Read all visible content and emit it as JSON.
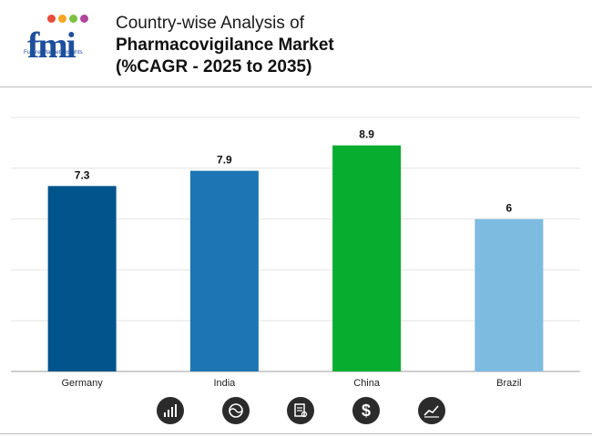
{
  "header": {
    "logo_text": "fmi",
    "logo_subtitle": "Future Market Insights",
    "title_line1": "Country-wise Analysis of",
    "title_line2": "Pharmacovigilance Market",
    "title_line3": "(%CAGR - 2025 to 2035)"
  },
  "chart_data": {
    "type": "bar",
    "title": "Country-wise Analysis of Pharmacovigilance Market (%CAGR - 2025 to 2035)",
    "categories": [
      "Germany",
      "India",
      "China",
      "Brazil"
    ],
    "values": [
      7.3,
      7.9,
      8.9,
      6
    ],
    "value_labels": [
      "7.3",
      "7.9",
      "8.9",
      "6"
    ],
    "colors": [
      "#02548c",
      "#1c76b3",
      "#06ad2f",
      "#7ebbe1"
    ],
    "ylim": [
      0,
      10
    ],
    "gridlines": [
      0,
      2,
      4,
      6,
      8,
      10
    ],
    "xlabel": "",
    "ylabel": "",
    "grid": true
  },
  "footer_icons": [
    "bar-chart-icon",
    "globe-icon",
    "document-icon",
    "dollar-icon",
    "trend-chart-icon"
  ],
  "colors": {
    "logo": "#1d4f9c",
    "icon_bg": "#2b2b2b"
  }
}
